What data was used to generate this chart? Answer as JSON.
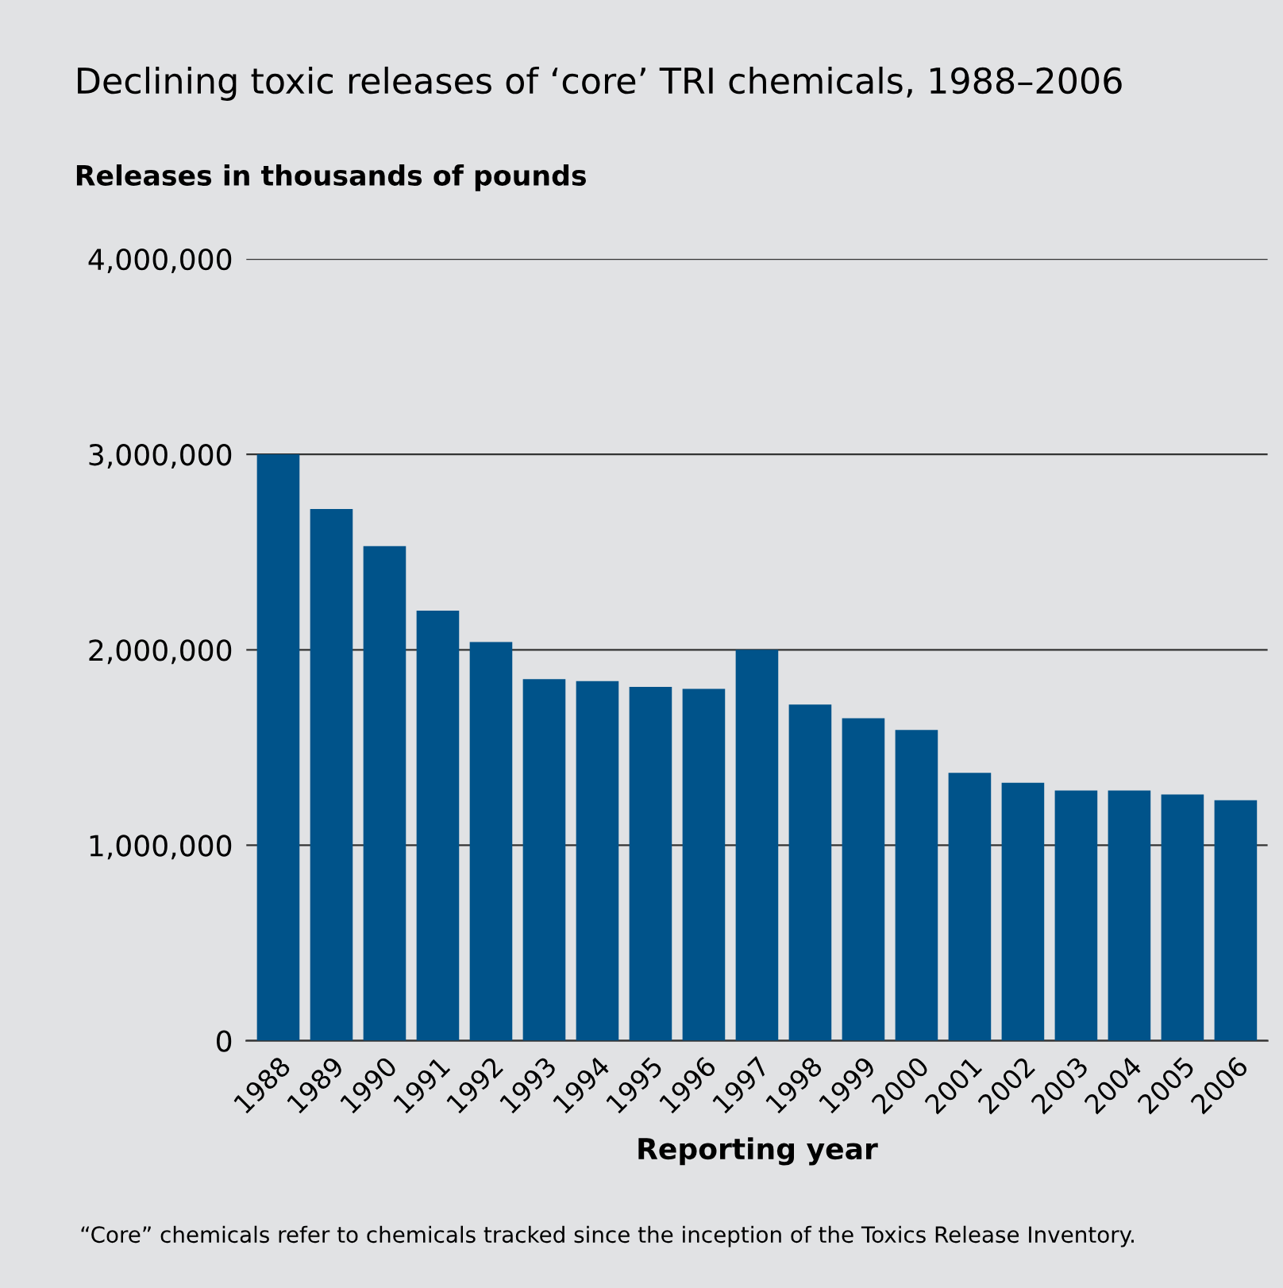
{
  "chart_data": {
    "type": "bar",
    "title": "Declining toxic releases of ‘core’ TRI chemicals, 1988–2006",
    "ylabel": "Releases in thousands of pounds",
    "xlabel": "Reporting year",
    "categories": [
      "1988",
      "1989",
      "1990",
      "1991",
      "1992",
      "1993",
      "1994",
      "1995",
      "1996",
      "1997",
      "1998",
      "1999",
      "2000",
      "2001",
      "2002",
      "2003",
      "2004",
      "2005",
      "2006"
    ],
    "values": [
      3000000,
      2720000,
      2530000,
      2200000,
      2040000,
      1850000,
      1840000,
      1810000,
      1800000,
      2000000,
      1720000,
      1650000,
      1590000,
      1370000,
      1320000,
      1280000,
      1280000,
      1260000,
      1230000
    ],
    "color": "#00538a",
    "ylim": [
      0,
      4000000
    ],
    "yticks": [
      {
        "value": 0,
        "label": "0"
      },
      {
        "value": 1000000,
        "label": "1,000,000"
      },
      {
        "value": 2000000,
        "label": "2,000,000"
      },
      {
        "value": 3000000,
        "label": "3,000,000"
      },
      {
        "value": 4000000,
        "label": "4,000,000"
      }
    ],
    "grid": "y",
    "annotations": [
      "“Core” chemicals refer to chemicals tracked since the inception of the Toxics Release Inventory."
    ]
  }
}
